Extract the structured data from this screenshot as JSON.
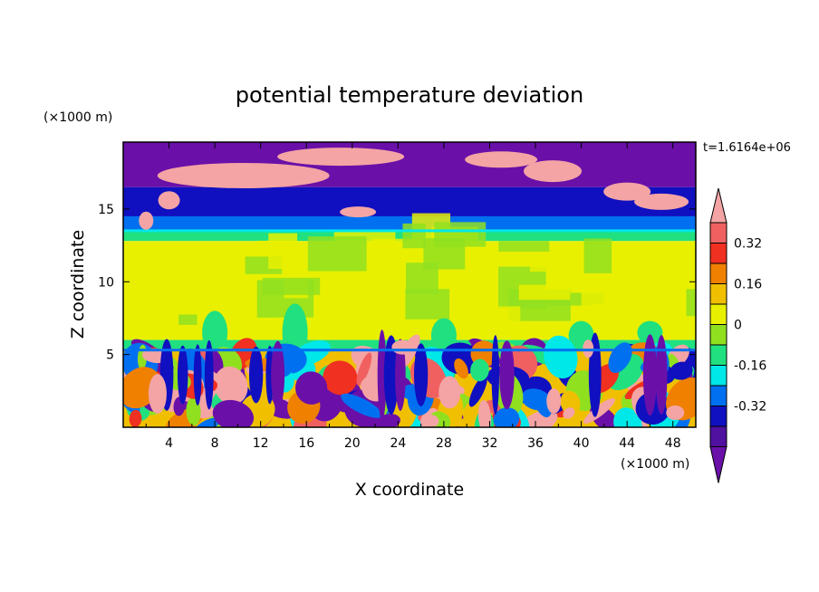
{
  "chart_data": {
    "type": "heatmap",
    "title": "potential temperature deviation",
    "xlabel": "X coordinate",
    "ylabel": "Z coordinate",
    "x_unit": "(×1000 m)",
    "y_unit": "(×1000 m)",
    "time_label": "t=1.6164e+06",
    "xlim": [
      0,
      50
    ],
    "ylim": [
      0,
      19.6
    ],
    "x_ticks": [
      "4",
      "8",
      "12",
      "16",
      "20",
      "24",
      "28",
      "32",
      "36",
      "40",
      "44",
      "48"
    ],
    "x_tick_values": [
      4,
      8,
      12,
      16,
      20,
      24,
      28,
      32,
      36,
      40,
      44,
      48
    ],
    "y_ticks": [
      "5",
      "10",
      "15"
    ],
    "y_tick_values": [
      5,
      10,
      15
    ],
    "colorbar": {
      "labels": [
        "0.32",
        "0.16",
        "0",
        "-0.16",
        "-0.32"
      ],
      "label_values": [
        0.32,
        0.16,
        0,
        -0.16,
        -0.32
      ],
      "levels": [
        0.4,
        0.32,
        0.24,
        0.16,
        0.08,
        0,
        -0.08,
        -0.16,
        -0.24,
        -0.32,
        -0.4
      ],
      "colors": [
        "#f06060",
        "#f03020",
        "#f08000",
        "#f0c000",
        "#e8f000",
        "#90e020",
        "#20e080",
        "#00e8e8",
        "#0070f0",
        "#1010c0",
        "#5010a0"
      ],
      "over_color": "#f4a4a4",
      "under_color": "#6a10a8"
    },
    "bands": [
      {
        "z": [
          16.5,
          19.6
        ],
        "value": -0.42,
        "desc": "top"
      },
      {
        "z": [
          14.5,
          16.5
        ],
        "value": -0.35
      },
      {
        "z": [
          13.5,
          14.5
        ],
        "value": -0.3
      },
      {
        "z": [
          12.8,
          13.5
        ],
        "value": -0.15
      },
      {
        "z": [
          6.0,
          12.8
        ],
        "value": 0.02
      },
      {
        "z": [
          5.4,
          6.0
        ],
        "value": -0.12
      },
      {
        "z": [
          0,
          5.4
        ],
        "value": "turbulent"
      }
    ]
  }
}
